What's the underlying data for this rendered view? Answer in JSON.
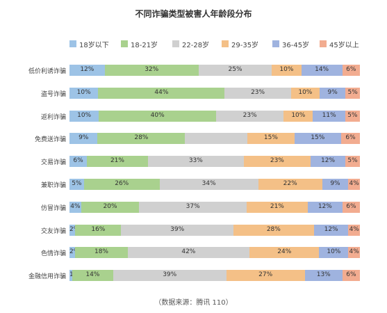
{
  "chart_data": {
    "type": "bar",
    "orientation": "horizontal",
    "stacked": true,
    "title": "不同诈骗类型被害人年龄段分布",
    "source": "（数据来源：腾讯 110）",
    "legend_position": "top",
    "grid": false,
    "categories": [
      "低价利诱诈骗",
      "盗号诈骗",
      "返利诈骗",
      "免费送诈骗",
      "交易诈骗",
      "兼职诈骗",
      "仿冒诈骗",
      "交友诈骗",
      "色情诈骗",
      "金融信用诈骗"
    ],
    "series": [
      {
        "name": "18岁以下",
        "color": "#9dc3e6",
        "values": [
          12,
          10,
          10,
          9,
          6,
          5,
          4,
          2,
          2,
          1
        ]
      },
      {
        "name": "18-21岁",
        "color": "#a9d18e",
        "values": [
          32,
          44,
          40,
          28,
          21,
          26,
          20,
          16,
          18,
          14
        ]
      },
      {
        "name": "22-28岁",
        "color": "#d0d0d0",
        "values": [
          25,
          23,
          23,
          20,
          33,
          34,
          37,
          39,
          42,
          39
        ]
      },
      {
        "name": "29-35岁",
        "color": "#f4c087",
        "values": [
          10,
          10,
          10,
          15,
          23,
          22,
          21,
          28,
          24,
          27
        ]
      },
      {
        "name": "36-45岁",
        "color": "#9fb3df",
        "values": [
          14,
          9,
          11,
          15,
          12,
          9,
          12,
          12,
          10,
          13
        ]
      },
      {
        "name": "45岁以上",
        "color": "#f2ac90",
        "values": [
          6,
          5,
          5,
          6,
          5,
          4,
          6,
          4,
          4,
          6
        ]
      }
    ],
    "value_labels": [
      [
        "12%",
        "32%",
        "25%",
        "10%",
        "14%",
        "6%"
      ],
      [
        "10%",
        "44%",
        "23%",
        "10%",
        "9%",
        "5%"
      ],
      [
        "10%",
        "40%",
        "23%",
        "10%",
        "11%",
        "5%"
      ],
      [
        "9%",
        "28%",
        "",
        "15%",
        "15%",
        "6%"
      ],
      [
        "6%",
        "21%",
        "33%",
        "23%",
        "12%",
        "5%"
      ],
      [
        "5%",
        "26%",
        "34%",
        "22%",
        "9%",
        "4%"
      ],
      [
        "4%",
        "20%",
        "37%",
        "21%",
        "12%",
        "6%"
      ],
      [
        "2%",
        "16%",
        "39%",
        "28%",
        "12%",
        "4%"
      ],
      [
        "2%",
        "18%",
        "42%",
        "24%",
        "10%",
        "4%"
      ],
      [
        "1%",
        "14%",
        "39%",
        "27%",
        "13%",
        "6%"
      ]
    ]
  }
}
